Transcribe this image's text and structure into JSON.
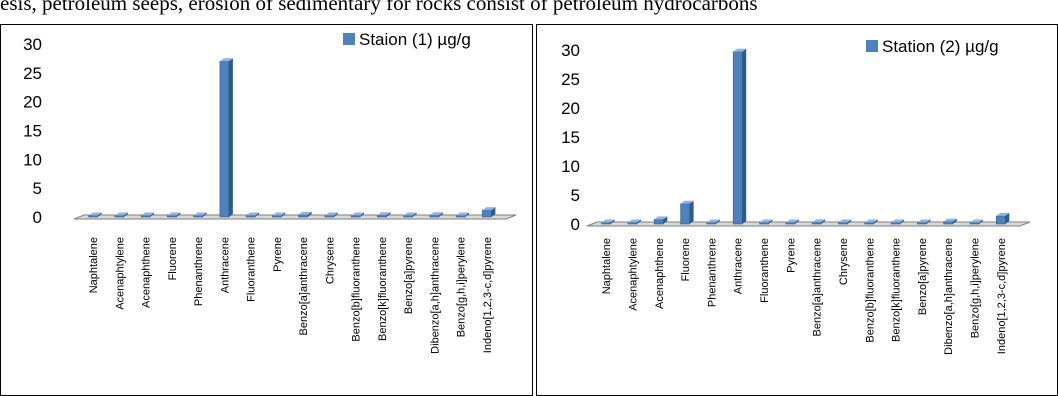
{
  "page": {
    "top_text": "esis, petroleum seeps, erosion of sedimentary for rocks consist of petroleum hydrocarbons"
  },
  "colors": {
    "bar_front": "#4F81BD",
    "bar_side": "#2E5A8C",
    "bar_top": "#8DB3E2",
    "floor": "#D9D9D9",
    "floor_edge": "#7F7F7F"
  },
  "chart_data": [
    {
      "type": "bar",
      "title": "",
      "xlabel": "",
      "ylabel": "",
      "ylim": [
        0,
        30
      ],
      "yticks": [
        "0",
        "5",
        "10",
        "15",
        "20",
        "25",
        "30"
      ],
      "legend": "top-right",
      "grid": false,
      "categories": [
        "Naphtalene",
        "Acenaphtylene",
        "Acenaphthene",
        "Fluorene",
        "Phenanthrene",
        "Anthracene",
        "Fluoranthene",
        "Pyrene",
        "Benzo[a]anthracene",
        "Chrysene",
        "Benzo[b]fluoranthene",
        "Benzo[k]fluoranthene",
        "Benzo[a]pyrene",
        "Dibenzo[a,h]anthracene",
        "Benzo[g,h,i]perylene",
        "Indeno[1,2,3-c,d]pyrene"
      ],
      "series": [
        {
          "name": "Staion (1) µg/g",
          "values": [
            0.05,
            0.05,
            0.1,
            0.1,
            0.1,
            27,
            0.1,
            0.1,
            0.4,
            0.1,
            0.1,
            0.3,
            0.1,
            0.3,
            0.05,
            1.2
          ]
        }
      ]
    },
    {
      "type": "bar",
      "title": "",
      "xlabel": "",
      "ylabel": "",
      "ylim": [
        0,
        30
      ],
      "yticks": [
        "0",
        "5",
        "10",
        "15",
        "20",
        "25",
        "30"
      ],
      "legend": "top-right",
      "grid": false,
      "categories": [
        "Naphtalene",
        "Acenaphtylene",
        "Acenaphthene",
        "Fluorene",
        "Phenanthrene",
        "Anthracene",
        "Fluoranthene",
        "Pyrene",
        "Benzo[a]anthracene",
        "Chrysene",
        "Benzo[b]fluoranthene",
        "Benzo[k]fluoranthene",
        "Benzo[a]pyrene",
        "Dibenzo[a,h]anthracene",
        "Benzo[g,h,i]perylene",
        "Indeno[1,2,3-c,d]pyrene"
      ],
      "series": [
        {
          "name": "Station (2) µg/g",
          "values": [
            0.05,
            0.05,
            0.8,
            3.5,
            0.05,
            29.7,
            0.05,
            0.1,
            0.3,
            0.1,
            0.05,
            0.05,
            0.05,
            0.4,
            0.05,
            1.4
          ]
        }
      ]
    }
  ]
}
